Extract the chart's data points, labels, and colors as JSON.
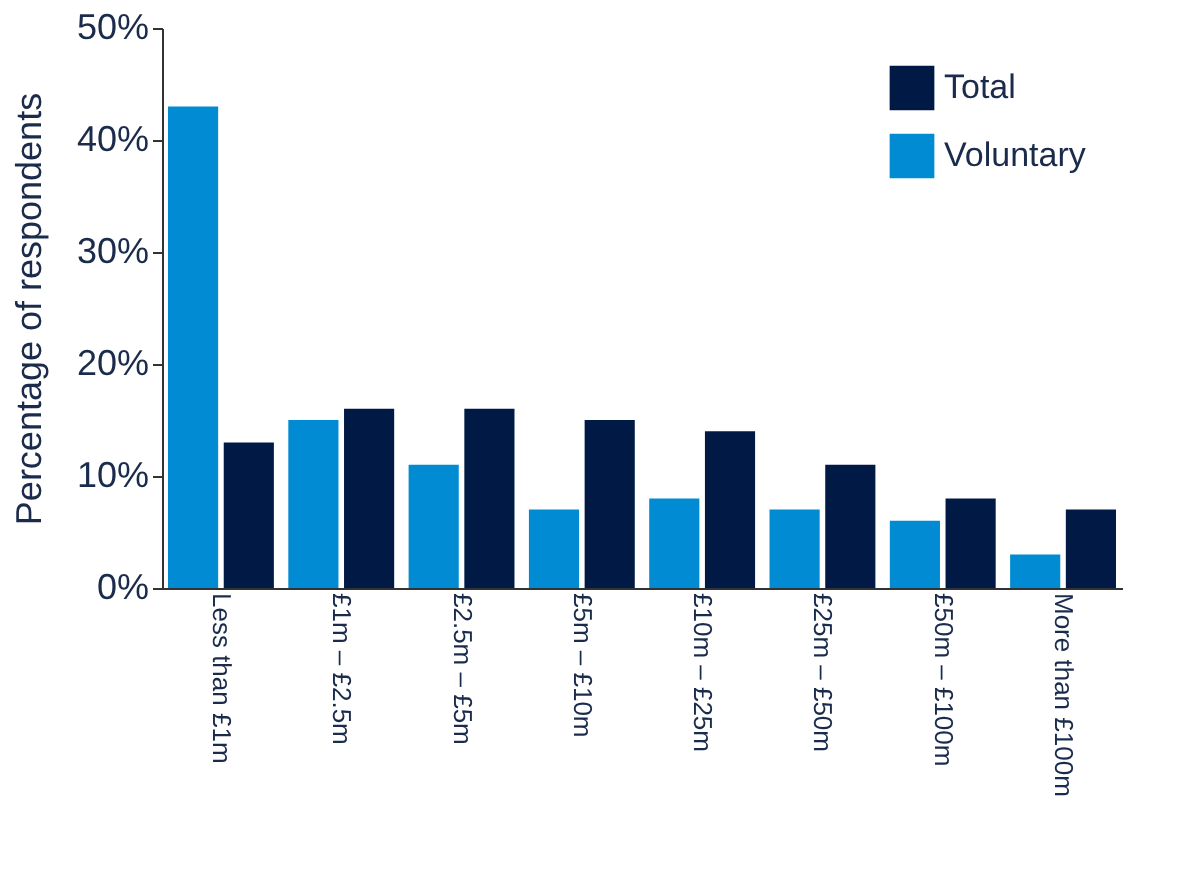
{
  "chart_data": {
    "type": "bar",
    "ylabel": "Percentage of respondents",
    "categories": [
      "Less than £1m",
      "£1m – £2.5m",
      "£2.5m – £5m",
      "£5m – £10m",
      "£10m – £25m",
      "£25m – £50m",
      "£50m – £100m",
      "More than £100m"
    ],
    "series": [
      {
        "name": "Voluntary",
        "color": "#008bd2",
        "values": [
          43,
          15,
          11,
          7,
          8,
          7,
          6,
          3
        ]
      },
      {
        "name": "Total",
        "color": "#001a45",
        "values": [
          13,
          16,
          16,
          15,
          14,
          11,
          8,
          7
        ]
      }
    ],
    "ylim": [
      0,
      50
    ],
    "yticks": [
      {
        "value": 0,
        "label": "0%"
      },
      {
        "value": 10,
        "label": "10%"
      },
      {
        "value": 20,
        "label": "20%"
      },
      {
        "value": 30,
        "label": "30%"
      },
      {
        "value": 40,
        "label": "40%"
      },
      {
        "value": 50,
        "label": "50%"
      }
    ],
    "grid": false,
    "legend": "top right"
  }
}
